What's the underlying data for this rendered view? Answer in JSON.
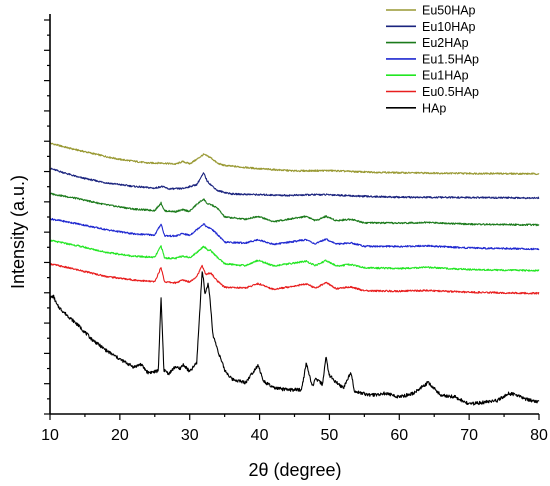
{
  "chart_data": {
    "type": "line",
    "xlabel": "2θ (degree)",
    "ylabel": "Intensity (a.u.)",
    "xlim": [
      10,
      80
    ],
    "x_ticks": [
      10,
      20,
      30,
      40,
      50,
      60,
      70,
      80
    ],
    "x_tick_labels": [
      "10",
      "20",
      "30",
      "40",
      "50",
      "60",
      "70",
      "80"
    ],
    "y_tick_labels": "none",
    "ylim": [
      0,
      100
    ],
    "grid": false,
    "legend_position": "top-right",
    "x_peaks_deg": [
      25.9,
      28.2,
      29.1,
      31.8,
      32.2,
      32.9,
      34.1,
      39.8,
      46.7,
      48.1,
      49.5,
      53.1,
      64.1,
      75.6
    ],
    "series": [
      {
        "name": "Eu50HAp",
        "color": "#999933",
        "points": [
          [
            10,
            73
          ],
          [
            13,
            71.5
          ],
          [
            16,
            70.2
          ],
          [
            18,
            69.3
          ],
          [
            20,
            68.5
          ],
          [
            24,
            67.5
          ],
          [
            26,
            67.5
          ],
          [
            28,
            67.2
          ],
          [
            29,
            67.9
          ],
          [
            30,
            67.3
          ],
          [
            31,
            68.5
          ],
          [
            32,
            69.9
          ],
          [
            33,
            69
          ],
          [
            34,
            67.4
          ],
          [
            35,
            66.8
          ],
          [
            40,
            65.9
          ],
          [
            45,
            65.3
          ],
          [
            50,
            65.4
          ],
          [
            55,
            65
          ],
          [
            60,
            64.8
          ],
          [
            70,
            64.6
          ],
          [
            80,
            64.5
          ]
        ]
      },
      {
        "name": "Eu10HAp",
        "color": "#1a237e",
        "points": [
          [
            10,
            66
          ],
          [
            14,
            63.6
          ],
          [
            18,
            62
          ],
          [
            22,
            61
          ],
          [
            25,
            60.5
          ],
          [
            26,
            61
          ],
          [
            27,
            60.3
          ],
          [
            29,
            60.4
          ],
          [
            31,
            61.5
          ],
          [
            32,
            64.7
          ],
          [
            32.5,
            62.5
          ],
          [
            33,
            61.5
          ],
          [
            34,
            59.8
          ],
          [
            36,
            58.9
          ],
          [
            40,
            58.7
          ],
          [
            44,
            58.5
          ],
          [
            48,
            58.7
          ],
          [
            50,
            58.7
          ],
          [
            54,
            58.3
          ],
          [
            60,
            58
          ],
          [
            70,
            57.9
          ],
          [
            80,
            57.8
          ]
        ]
      },
      {
        "name": "Eu2HAp",
        "color": "#1b7a1b",
        "points": [
          [
            10,
            59
          ],
          [
            14,
            57.6
          ],
          [
            18,
            55.9
          ],
          [
            22,
            54.7
          ],
          [
            25,
            54.3
          ],
          [
            25.9,
            56.4
          ],
          [
            26.4,
            54.2
          ],
          [
            28,
            54
          ],
          [
            29,
            54.5
          ],
          [
            30,
            54.1
          ],
          [
            31,
            56
          ],
          [
            32,
            57.5
          ],
          [
            32.6,
            56
          ],
          [
            33,
            56
          ],
          [
            34,
            54.9
          ],
          [
            35,
            52.5
          ],
          [
            38,
            51.9
          ],
          [
            39.8,
            52.7
          ],
          [
            42,
            51.2
          ],
          [
            46.7,
            52.7
          ],
          [
            48,
            51.5
          ],
          [
            49.5,
            52.7
          ],
          [
            51,
            51.5
          ],
          [
            53.1,
            51.9
          ],
          [
            55,
            50.9
          ],
          [
            60,
            50.8
          ],
          [
            64,
            51
          ],
          [
            70,
            50.5
          ],
          [
            80,
            50.3
          ]
        ]
      },
      {
        "name": "Eu1.5HAp",
        "color": "#1f28d0",
        "points": [
          [
            10,
            52
          ],
          [
            14,
            50.6
          ],
          [
            18,
            49
          ],
          [
            22,
            47.8
          ],
          [
            25,
            47.5
          ],
          [
            25.9,
            50.6
          ],
          [
            26.4,
            47.3
          ],
          [
            28,
            47.2
          ],
          [
            29,
            47.9
          ],
          [
            30,
            47.4
          ],
          [
            31,
            49
          ],
          [
            32,
            50.6
          ],
          [
            32.6,
            49.5
          ],
          [
            33,
            49.4
          ],
          [
            34,
            47.6
          ],
          [
            35,
            45.5
          ],
          [
            38,
            45.3
          ],
          [
            39.8,
            46.2
          ],
          [
            42,
            44.9
          ],
          [
            46.7,
            46.2
          ],
          [
            48,
            45
          ],
          [
            49.5,
            46.4
          ],
          [
            51,
            45
          ],
          [
            53.1,
            45.3
          ],
          [
            55,
            44.4
          ],
          [
            60,
            44.3
          ],
          [
            64,
            44.5
          ],
          [
            70,
            43.9
          ],
          [
            80,
            43.6
          ]
        ]
      },
      {
        "name": "Eu1HAp",
        "color": "#22e622",
        "points": [
          [
            10,
            46
          ],
          [
            14,
            44.5
          ],
          [
            18,
            42.7
          ],
          [
            22,
            41.6
          ],
          [
            25,
            41.3
          ],
          [
            25.9,
            44.5
          ],
          [
            26.4,
            41.1
          ],
          [
            28,
            41
          ],
          [
            29,
            41.7
          ],
          [
            30,
            41.2
          ],
          [
            31,
            42.6
          ],
          [
            32,
            44.4
          ],
          [
            32.6,
            43.3
          ],
          [
            33,
            43.2
          ],
          [
            34,
            41.2
          ],
          [
            35,
            39.5
          ],
          [
            38,
            39
          ],
          [
            39.8,
            40.5
          ],
          [
            42,
            38.9
          ],
          [
            46.7,
            40.2
          ],
          [
            48,
            39
          ],
          [
            49.5,
            40.4
          ],
          [
            51,
            38.9
          ],
          [
            53.1,
            39.3
          ],
          [
            55,
            38.4
          ],
          [
            60,
            38.2
          ],
          [
            64,
            38.5
          ],
          [
            70,
            37.9
          ],
          [
            80,
            37.6
          ]
        ]
      },
      {
        "name": "Eu0.5HAp",
        "color": "#e81e1e",
        "points": [
          [
            10,
            39.5
          ],
          [
            14,
            37.8
          ],
          [
            18,
            36
          ],
          [
            22,
            35
          ],
          [
            25,
            34.5
          ],
          [
            25.9,
            38.5
          ],
          [
            26.4,
            34.5
          ],
          [
            28,
            34.2
          ],
          [
            29,
            35
          ],
          [
            30,
            34.5
          ],
          [
            31,
            36
          ],
          [
            31.8,
            39
          ],
          [
            32.3,
            36.5
          ],
          [
            33,
            37
          ],
          [
            34,
            34.6
          ],
          [
            35,
            33
          ],
          [
            38,
            32.8
          ],
          [
            39.8,
            34
          ],
          [
            42,
            32.4
          ],
          [
            46.7,
            33.9
          ],
          [
            48,
            32.7
          ],
          [
            49.5,
            34.3
          ],
          [
            51,
            32.6
          ],
          [
            53.1,
            33.1
          ],
          [
            55,
            32
          ],
          [
            60,
            31.9
          ],
          [
            64,
            32.1
          ],
          [
            70,
            31.6
          ],
          [
            80,
            31.3
          ]
        ]
      },
      {
        "name": "HAp",
        "color": "#000000",
        "points": [
          [
            10,
            30
          ],
          [
            10.5,
            30.5
          ],
          [
            11,
            28
          ],
          [
            12,
            26
          ],
          [
            14,
            22.5
          ],
          [
            16,
            18.5
          ],
          [
            18,
            15.5
          ],
          [
            20,
            13
          ],
          [
            22,
            10.8
          ],
          [
            23,
            11.6
          ],
          [
            24,
            9.3
          ],
          [
            25,
            9.5
          ],
          [
            25.5,
            9.8
          ],
          [
            25.9,
            30
          ],
          [
            26.3,
            10
          ],
          [
            27,
            9
          ],
          [
            28,
            11
          ],
          [
            28.5,
            10.2
          ],
          [
            29.1,
            11.5
          ],
          [
            30,
            9.5
          ],
          [
            31,
            12
          ],
          [
            31.8,
            38
          ],
          [
            32.2,
            31
          ],
          [
            32.6,
            34
          ],
          [
            32.9,
            30
          ],
          [
            33.3,
            20
          ],
          [
            34.1,
            15
          ],
          [
            35,
            10
          ],
          [
            36,
            7.5
          ],
          [
            38,
            6.5
          ],
          [
            39.8,
            11.5
          ],
          [
            40.5,
            7
          ],
          [
            42,
            5
          ],
          [
            44,
            4.5
          ],
          [
            46,
            4.5
          ],
          [
            46.7,
            12
          ],
          [
            47.5,
            5.5
          ],
          [
            48.1,
            7.5
          ],
          [
            49,
            6
          ],
          [
            49.5,
            13.5
          ],
          [
            50,
            8.5
          ],
          [
            51,
            6.5
          ],
          [
            52,
            5
          ],
          [
            53.1,
            9.5
          ],
          [
            53.6,
            4
          ],
          [
            56,
            3
          ],
          [
            58,
            3.5
          ],
          [
            60,
            2.5
          ],
          [
            62,
            3.5
          ],
          [
            64.1,
            6.5
          ],
          [
            66,
            3
          ],
          [
            68,
            2.5
          ],
          [
            70,
            0.5
          ],
          [
            72,
            1
          ],
          [
            74,
            1.5
          ],
          [
            75.6,
            3.5
          ],
          [
            77,
            3
          ],
          [
            78,
            2
          ],
          [
            80,
            1
          ]
        ]
      }
    ]
  }
}
